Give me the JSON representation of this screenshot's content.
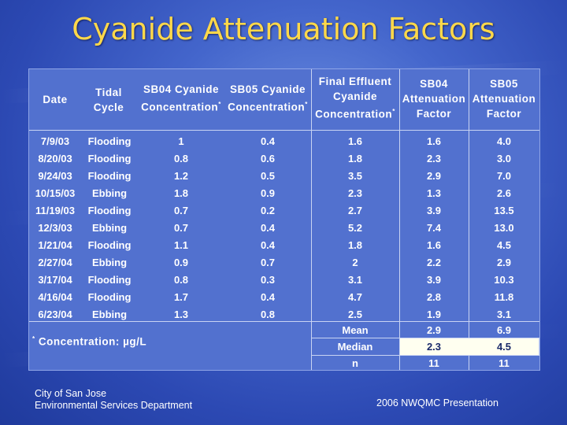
{
  "title": "Cyanide Attenuation Factors",
  "headers": {
    "date": "Date",
    "tidal": [
      "Tidal",
      "Cycle"
    ],
    "sb04": [
      "SB04 Cyanide",
      "Concentration"
    ],
    "sb05": [
      "SB05 Cyanide",
      "Concentration"
    ],
    "final": [
      "Final Effluent",
      "Cyanide",
      "Concentration"
    ],
    "sb04f": [
      "SB04",
      "Attenuation",
      "Factor"
    ],
    "sb05f": [
      "SB05",
      "Attenuation",
      "Factor"
    ],
    "star": "*"
  },
  "rows": [
    {
      "date": "7/9/03",
      "tide": "Flooding",
      "sb04": "1",
      "sb05": "0.4",
      "final": "1.6",
      "sb04f": "1.6",
      "sb05f": "4.0"
    },
    {
      "date": "8/20/03",
      "tide": "Flooding",
      "sb04": "0.8",
      "sb05": "0.6",
      "final": "1.8",
      "sb04f": "2.3",
      "sb05f": "3.0"
    },
    {
      "date": "9/24/03",
      "tide": "Flooding",
      "sb04": "1.2",
      "sb05": "0.5",
      "final": "3.5",
      "sb04f": "2.9",
      "sb05f": "7.0"
    },
    {
      "date": "10/15/03",
      "tide": "Ebbing",
      "sb04": "1.8",
      "sb05": "0.9",
      "final": "2.3",
      "sb04f": "1.3",
      "sb05f": "2.6"
    },
    {
      "date": "11/19/03",
      "tide": "Flooding",
      "sb04": "0.7",
      "sb05": "0.2",
      "final": "2.7",
      "sb04f": "3.9",
      "sb05f": "13.5"
    },
    {
      "date": "12/3/03",
      "tide": "Ebbing",
      "sb04": "0.7",
      "sb05": "0.4",
      "final": "5.2",
      "sb04f": "7.4",
      "sb05f": "13.0"
    },
    {
      "date": "1/21/04",
      "tide": "Flooding",
      "sb04": "1.1",
      "sb05": "0.4",
      "final": "1.8",
      "sb04f": "1.6",
      "sb05f": "4.5"
    },
    {
      "date": "2/27/04",
      "tide": "Ebbing",
      "sb04": "0.9",
      "sb05": "0.7",
      "final": "2",
      "sb04f": "2.2",
      "sb05f": "2.9"
    },
    {
      "date": "3/17/04",
      "tide": "Flooding",
      "sb04": "0.8",
      "sb05": "0.3",
      "final": "3.1",
      "sb04f": "3.9",
      "sb05f": "10.3"
    },
    {
      "date": "4/16/04",
      "tide": "Flooding",
      "sb04": "1.7",
      "sb05": "0.4",
      "final": "4.7",
      "sb04f": "2.8",
      "sb05f": "11.8"
    },
    {
      "date": "6/23/04",
      "tide": "Ebbing",
      "sb04": "1.3",
      "sb05": "0.8",
      "final": "2.5",
      "sb04f": "1.9",
      "sb05f": "3.1"
    }
  ],
  "stats": [
    {
      "label": "Mean",
      "sb04f": "2.9",
      "sb05f": "6.9"
    },
    {
      "label": "Median",
      "sb04f": "2.3",
      "sb05f": "4.5"
    },
    {
      "label": "n",
      "sb04f": "11",
      "sb05f": "11"
    }
  ],
  "unit_note": {
    "star": "*",
    "text": "Concentration:  µg/L"
  },
  "footer": {
    "left": [
      "City of San Jose",
      "Environmental Services Department"
    ],
    "right": "2006 NWQMC Presentation"
  },
  "colors": {
    "title": "#ffd84a",
    "panel": "#5271cf",
    "highlight": "#fffff0"
  }
}
